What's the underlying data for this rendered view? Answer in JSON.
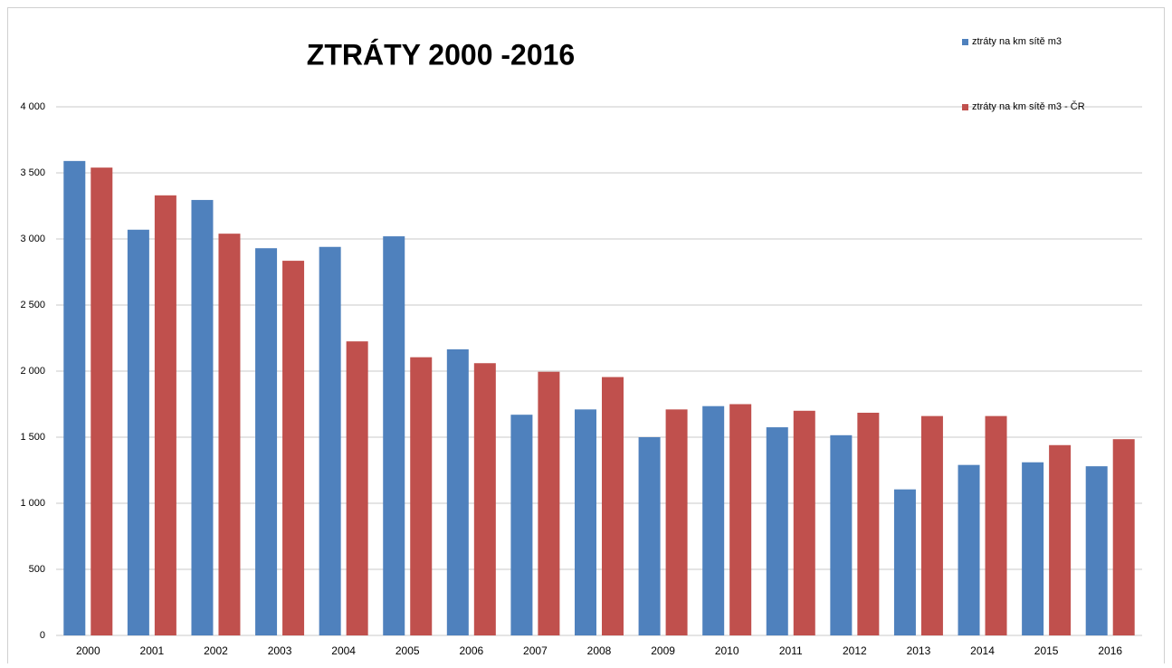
{
  "chart_data": {
    "type": "bar",
    "title": "ZTRÁTY 2000 -2016",
    "categories": [
      "2000",
      "2001",
      "2002",
      "2003",
      "2004",
      "2005",
      "2006",
      "2007",
      "2008",
      "2009",
      "2010",
      "2011",
      "2012",
      "2013",
      "2014",
      "2015",
      "2016"
    ],
    "series": [
      {
        "name": "ztráty na km sítě m3",
        "color": "#4f81bd",
        "values": [
          3590,
          3070,
          3295,
          2930,
          2940,
          3020,
          2165,
          1670,
          1710,
          1500,
          1735,
          1575,
          1515,
          1105,
          1290,
          1310,
          1280
        ]
      },
      {
        "name": "ztráty na km sítě m3 - ČR",
        "color": "#c0504d",
        "values": [
          3540,
          3330,
          3040,
          2835,
          2225,
          2105,
          2060,
          1995,
          1955,
          1710,
          1750,
          1700,
          1685,
          1660,
          1660,
          1440,
          1485
        ]
      }
    ],
    "ylim": [
      0,
      4000
    ],
    "yticks": [
      0,
      500,
      {
        "value": 1000,
        "label": "1 000"
      },
      {
        "value": 1500,
        "label": "1 500"
      },
      {
        "value": 2000,
        "label": "2 000"
      },
      {
        "value": 2500,
        "label": "2 500"
      },
      {
        "value": 3000,
        "label": "3 000"
      },
      {
        "value": 3500,
        "label": "3 500"
      },
      {
        "value": 4000,
        "label": "4 000"
      }
    ],
    "grid": true,
    "legend": "top-right"
  }
}
